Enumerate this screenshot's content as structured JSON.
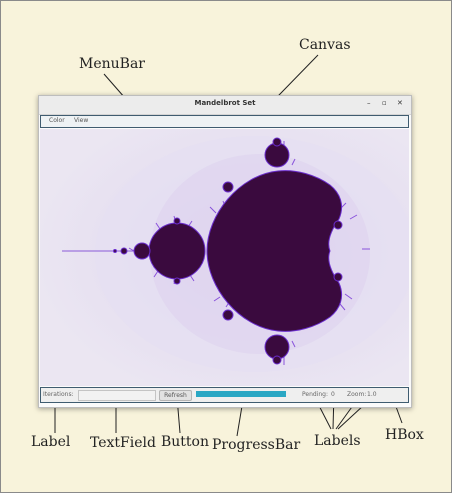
{
  "annotations": {
    "canvas": "Canvas",
    "menubar": "MenuBar",
    "label": "Label",
    "textfield": "TextField",
    "button": "Button",
    "progressbar": "ProgressBar",
    "labels": "Labels",
    "hbox": "HBox"
  },
  "window": {
    "title": "Mandelbrot Set",
    "minimize": "–",
    "maximize": "▫",
    "close": "✕"
  },
  "menu": {
    "items": [
      "Color",
      "View"
    ]
  },
  "status": {
    "iterations_label": "Iterations:",
    "iterations_value": "",
    "refresh_label": "Refresh",
    "progress": 1.0,
    "pending_label": "Pending:",
    "pending_value": "0",
    "zoom_label": "Zoom:",
    "zoom_value": "1.0"
  },
  "colors": {
    "background": "#f8f3db",
    "canvas_bg": "#ebe6f2",
    "set_fill": "#3a0a3e",
    "fringe": "#7a3cd8",
    "progress": "#2aa7c4",
    "callout_line": "#222222",
    "widget_border": "#3f5c70"
  }
}
